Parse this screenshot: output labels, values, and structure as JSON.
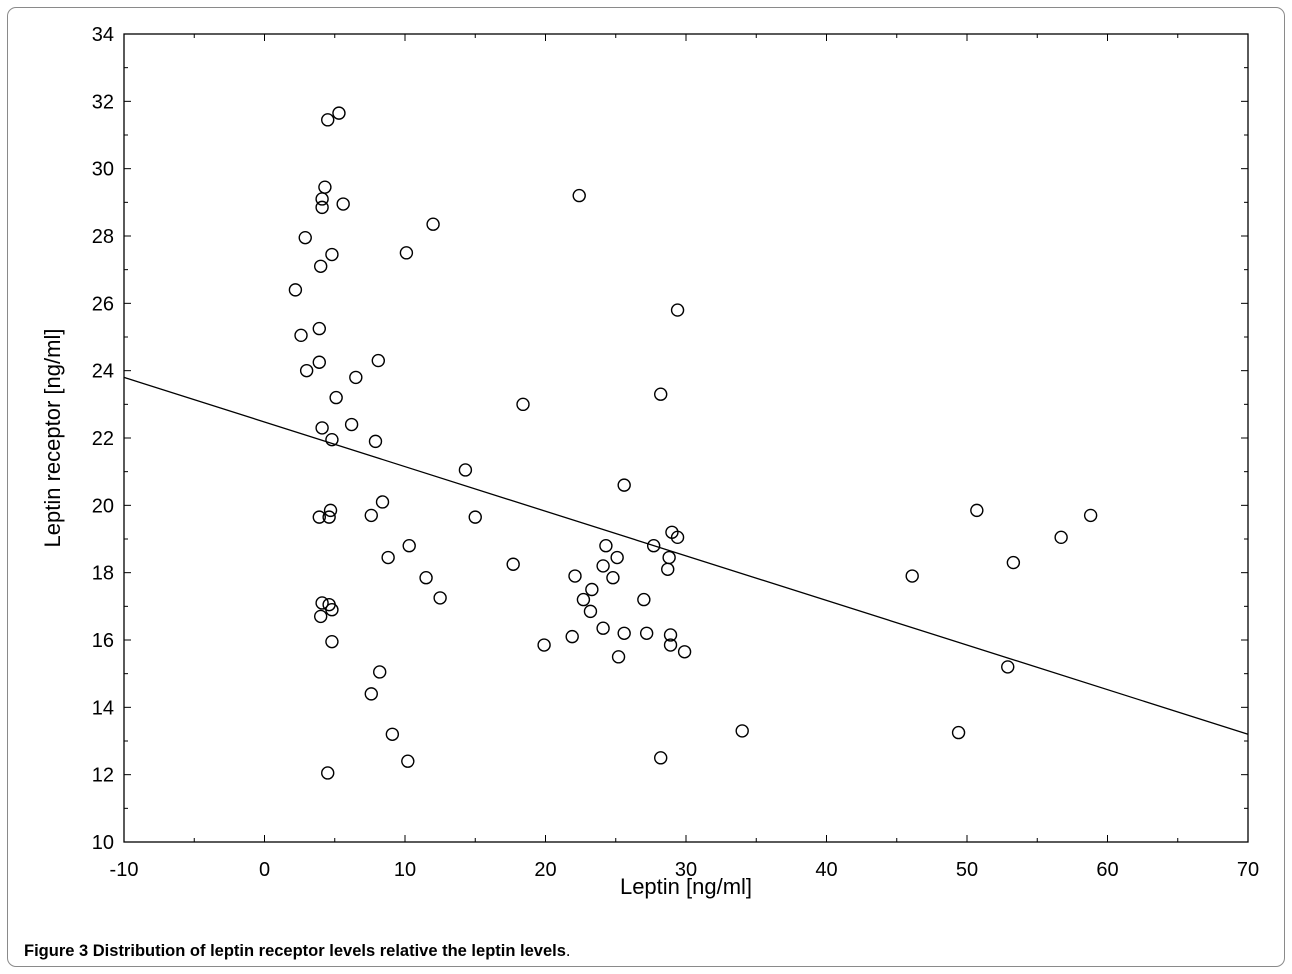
{
  "caption": {
    "bold": "Figure 3 Distribution of leptin receptor levels relative the leptin levels",
    "normal": "."
  },
  "chart_data": {
    "type": "scatter",
    "title": "",
    "xlabel": "Leptin [ng/ml]",
    "ylabel": "Leptin receptor [ng/ml]",
    "xlim": [
      -10,
      70
    ],
    "ylim": [
      10,
      34
    ],
    "x_ticks": [
      -10,
      0,
      10,
      20,
      30,
      40,
      50,
      60,
      70
    ],
    "y_ticks": [
      10,
      12,
      14,
      16,
      18,
      20,
      22,
      24,
      26,
      28,
      30,
      32,
      34
    ],
    "grid": false,
    "marker": "open-circle",
    "trend_line": {
      "x": [
        -10,
        70
      ],
      "y": [
        23.8,
        13.2
      ]
    },
    "points": [
      [
        4.5,
        31.45
      ],
      [
        5.3,
        31.65
      ],
      [
        4.3,
        29.45
      ],
      [
        4.1,
        29.1
      ],
      [
        4.1,
        28.85
      ],
      [
        5.6,
        28.95
      ],
      [
        2.9,
        27.95
      ],
      [
        4.0,
        27.1
      ],
      [
        4.8,
        27.45
      ],
      [
        2.2,
        26.4
      ],
      [
        2.6,
        25.05
      ],
      [
        3.9,
        25.25
      ],
      [
        3.9,
        24.25
      ],
      [
        3.0,
        24.0
      ],
      [
        5.1,
        23.2
      ],
      [
        4.1,
        22.3
      ],
      [
        4.8,
        21.95
      ],
      [
        3.9,
        19.65
      ],
      [
        4.6,
        19.65
      ],
      [
        4.7,
        19.85
      ],
      [
        4.1,
        17.1
      ],
      [
        4.6,
        17.05
      ],
      [
        4.0,
        16.7
      ],
      [
        4.8,
        16.9
      ],
      [
        4.8,
        15.95
      ],
      [
        4.5,
        12.05
      ],
      [
        6.2,
        22.4
      ],
      [
        6.5,
        23.8
      ],
      [
        7.9,
        21.9
      ],
      [
        8.1,
        24.3
      ],
      [
        7.6,
        19.7
      ],
      [
        8.4,
        20.1
      ],
      [
        8.8,
        18.45
      ],
      [
        8.2,
        15.05
      ],
      [
        7.6,
        14.4
      ],
      [
        9.1,
        13.2
      ],
      [
        10.2,
        12.4
      ],
      [
        10.1,
        27.5
      ],
      [
        12.0,
        28.35
      ],
      [
        10.3,
        18.8
      ],
      [
        11.5,
        17.85
      ],
      [
        12.5,
        17.25
      ],
      [
        14.3,
        21.05
      ],
      [
        15.0,
        19.65
      ],
      [
        17.7,
        18.25
      ],
      [
        18.4,
        23.0
      ],
      [
        19.9,
        15.85
      ],
      [
        22.4,
        29.2
      ],
      [
        22.1,
        17.9
      ],
      [
        21.9,
        16.1
      ],
      [
        22.7,
        17.2
      ],
      [
        23.2,
        16.85
      ],
      [
        23.3,
        17.5
      ],
      [
        24.1,
        18.2
      ],
      [
        24.3,
        18.8
      ],
      [
        24.1,
        16.35
      ],
      [
        24.8,
        17.85
      ],
      [
        25.1,
        18.45
      ],
      [
        25.2,
        15.5
      ],
      [
        25.6,
        16.2
      ],
      [
        25.6,
        20.6
      ],
      [
        27.0,
        17.2
      ],
      [
        27.2,
        16.2
      ],
      [
        27.7,
        18.8
      ],
      [
        28.2,
        23.3
      ],
      [
        28.7,
        18.1
      ],
      [
        28.8,
        18.45
      ],
      [
        28.9,
        16.15
      ],
      [
        28.9,
        15.85
      ],
      [
        29.0,
        19.2
      ],
      [
        29.4,
        19.05
      ],
      [
        29.4,
        25.8
      ],
      [
        29.9,
        15.65
      ],
      [
        28.2,
        12.5
      ],
      [
        34.0,
        13.3
      ],
      [
        46.1,
        17.9
      ],
      [
        49.4,
        13.25
      ],
      [
        50.7,
        19.85
      ],
      [
        52.9,
        15.2
      ],
      [
        53.3,
        18.3
      ],
      [
        56.7,
        19.05
      ],
      [
        58.8,
        19.7
      ]
    ]
  }
}
